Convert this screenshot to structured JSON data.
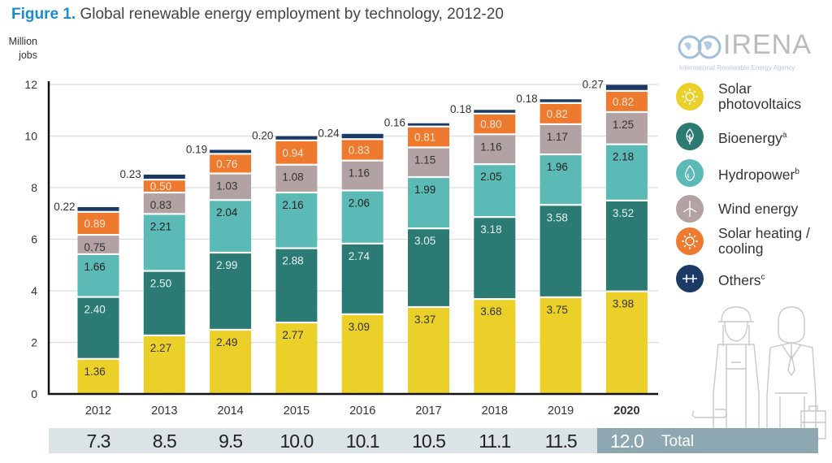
{
  "title": {
    "prefix": "Figure 1.",
    "text": "Global renewable energy employment by technology, 2012-20"
  },
  "logo": {
    "name": "IRENA",
    "subtitle": "International Renewable Energy Agency"
  },
  "colors": {
    "solar_pv": "#ebd02a",
    "bioenergy": "#2b7a74",
    "hydropower": "#5cbab6",
    "wind": "#b3a2a4",
    "solar_heating": "#ee7a30",
    "others": "#1c3a63",
    "totals_bg": "#dbe3e7",
    "totals_bg_current": "#8ea8b2"
  },
  "chart_data": {
    "type": "bar",
    "stacked": true,
    "title": "Global renewable energy employment by technology, 2012-20",
    "ylabel": "Million jobs",
    "xlabel": "",
    "ylim": [
      0,
      12
    ],
    "yticks": [
      0,
      2,
      4,
      6,
      8,
      10,
      12
    ],
    "grid": true,
    "legend_position": "right",
    "categories": [
      "2012",
      "2013",
      "2014",
      "2015",
      "2016",
      "2017",
      "2018",
      "2019",
      "2020"
    ],
    "highlight_category": "2020",
    "series": [
      {
        "key": "solar_pv",
        "name": "Solar photovoltaics",
        "values": [
          1.36,
          2.27,
          2.49,
          2.77,
          3.09,
          3.37,
          3.68,
          3.75,
          3.98
        ]
      },
      {
        "key": "bioenergy",
        "name": "Bioenergy",
        "footnote": "a",
        "values": [
          2.4,
          2.5,
          2.99,
          2.88,
          2.74,
          3.05,
          3.18,
          3.58,
          3.52
        ]
      },
      {
        "key": "hydropower",
        "name": "Hydropower",
        "footnote": "b",
        "values": [
          1.66,
          2.21,
          2.04,
          2.16,
          2.06,
          1.99,
          2.05,
          1.96,
          2.18
        ]
      },
      {
        "key": "wind",
        "name": "Wind energy",
        "values": [
          0.75,
          0.83,
          1.03,
          1.08,
          1.16,
          1.15,
          1.16,
          1.17,
          1.25
        ]
      },
      {
        "key": "solar_heating",
        "name": "Solar heating / cooling",
        "values": [
          0.89,
          0.5,
          0.76,
          0.94,
          0.83,
          0.81,
          0.8,
          0.82,
          0.82
        ]
      },
      {
        "key": "others",
        "name": "Others",
        "footnote": "c",
        "values": [
          0.22,
          0.23,
          0.19,
          0.2,
          0.24,
          0.16,
          0.18,
          0.18,
          0.27
        ]
      }
    ],
    "totals": [
      "7.3",
      "8.5",
      "9.5",
      "10.0",
      "10.1",
      "10.5",
      "11.1",
      "11.5",
      "12.0"
    ],
    "totals_label": "Total"
  },
  "axis": {
    "ylabel_line1": "Million",
    "ylabel_line2": "jobs"
  },
  "legend": [
    {
      "key": "solar_pv",
      "line1": "Solar",
      "line2": "photovoltaics",
      "sup": "",
      "icon": "sun-icon"
    },
    {
      "key": "bioenergy",
      "line1": "Bioenergy",
      "line2": "",
      "sup": "a",
      "icon": "leaf-icon"
    },
    {
      "key": "hydropower",
      "line1": "Hydropower",
      "line2": "",
      "sup": "b",
      "icon": "water-drop-icon"
    },
    {
      "key": "wind",
      "line1": "Wind energy",
      "line2": "",
      "sup": "",
      "icon": "wind-turbine-icon"
    },
    {
      "key": "solar_heating",
      "line1": "Solar heating /",
      "line2": "cooling",
      "sup": "",
      "icon": "sun-icon"
    },
    {
      "key": "others",
      "line1": "Others",
      "line2": "",
      "sup": "c",
      "icon": "plus-plus-icon"
    }
  ]
}
